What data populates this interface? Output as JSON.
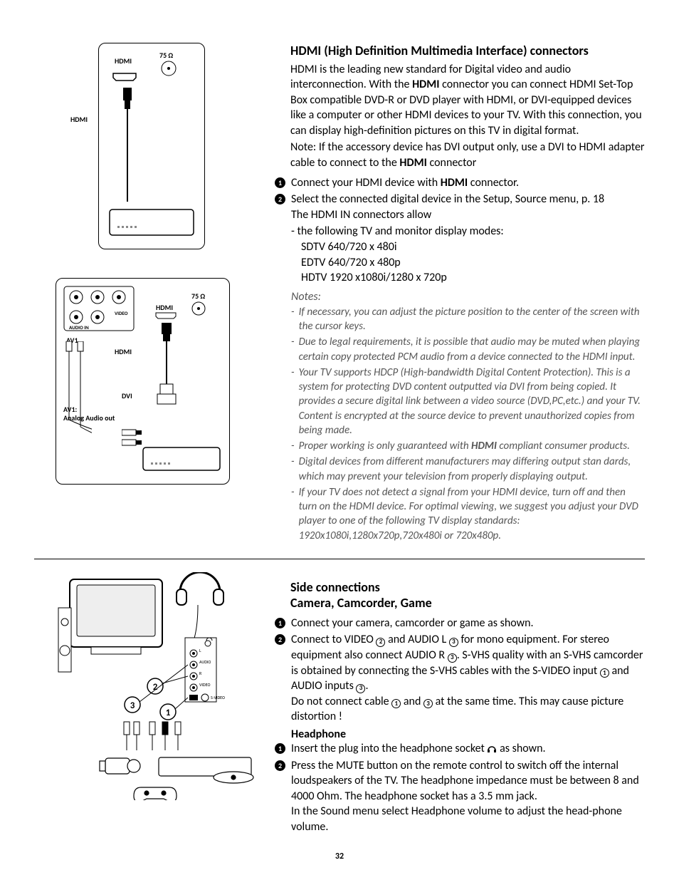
{
  "page_number": "32",
  "hdmi": {
    "title": "HDMI (High Definition Multimedia Interface) connectors",
    "intro_pre": "HDMI is the leading new standard for Digital video and audio interconnection. With the ",
    "intro_bold1": "HDMI",
    "intro_mid": " connector you can connect HDMI Set-Top Box compatible DVD-R or DVD player with HDMI, or DVI-equipped devices like a computer or other HDMI devices to your TV. With this connection, you can display high-definition pictures on this TV in digital format.",
    "note_line_pre": "Note: If the accessory device has DVI output only, use a DVI to HDMI adapter cable to connect to the ",
    "note_line_bold": "HDMI",
    "note_line_post": " connector",
    "step1_pre": "Connect your HDMI device with ",
    "step1_bold": "HDMI",
    "step1_post": " connector.",
    "step2": "Select the connected digital device in the Setup, Source menu, p. 18",
    "allow": "The HDMI IN connectors allow",
    "modes_intro": "- the following TV and monitor display modes:",
    "mode_sdtv": "SDTV 640/720 x 480i",
    "mode_edtv": "EDTV 640/720 x 480p",
    "mode_hdtv": "HDTV 1920 x1080i/1280 x 720p",
    "notes_header": "Notes:",
    "notes": [
      "If necessary, you can adjust the picture position to the center of the screen with the cursor keys.",
      "Due to legal requirements, it is possible that audio may be muted when playing certain copy protected PCM audio from a device connected to the HDMI input.",
      "Your TV supports HDCP (High-bandwidth Digital Content Protection). This is a system for protecting DVD content outputted via DVI from being copied. It provides a secure digital link between a video source (DVD,PC,etc.) and your TV. Content is encrypted at the source device to prevent unauthorized copies from being made.",
      "Proper working is only guaranteed with <b>HDMI</b> compliant consumer products.",
      "Digital devices from different manufacturers  may differing output stan dards, which may prevent your television from  properly displaying output.",
      "If your TV does not detect a signal from your HDMI device, turn off and then turn on the HDMI device. For optimal viewing, we suggest you adjust your DVD player to one of the following TV display standards: 1920x1080i,1280x720p,720x480i or 720x480p."
    ]
  },
  "side": {
    "title1": "Side connections",
    "title2": "Camera, Camcorder, Game",
    "step1": "Connect your camera, camcorder or game as shown.",
    "step2_a": "Connect to VIDEO ",
    "step2_b": " and AUDIO L ",
    "step2_c": " for mono equipment. For stereo equipment also connect AUDIO R ",
    "step2_d": ". S-VHS quality with an S-VHS camcorder is obtained by connecting the S-VHS cables with the S-VIDEO input ",
    "step2_e": " and AUDIO inputs ",
    "step2_f": ".",
    "warn_a": "Do not connect cable ",
    "warn_b": " and ",
    "warn_c": " at the same time. This may cause picture distortion !",
    "head_title": "Headphone",
    "h_step1_a": "Insert the plug into the headphone socket ",
    "h_step1_b": " as shown.",
    "h_step2": "Press the MUTE button on the remote control to switch off the internal loudspeakers of the TV. The headphone impedance must be between 8 and 4000 Ohm. The headphone socket has a 3.5 mm jack.",
    "h_tail": "In the Sound menu select Headphone volume to adjust the head-phone volume."
  },
  "diagrams": {
    "d1": {
      "hdmi_top": "HDMI",
      "ohm": "75 Ω",
      "hdmi_side": "HDMI"
    },
    "d2": {
      "av1": "AV1",
      "video": "VIDEO",
      "audio_in": "AUDIO IN",
      "hdmi_top": "HDMI",
      "ohm": "75 Ω",
      "hdmi_side": "HDMI",
      "dvi": "DVI",
      "av1_analog": "AV1:\nAnalog Audio out"
    },
    "d3": {
      "audio": "AUDIO",
      "video": "VIDEO",
      "svideo": "S-VIDEO",
      "l": "L",
      "r": "R"
    }
  }
}
